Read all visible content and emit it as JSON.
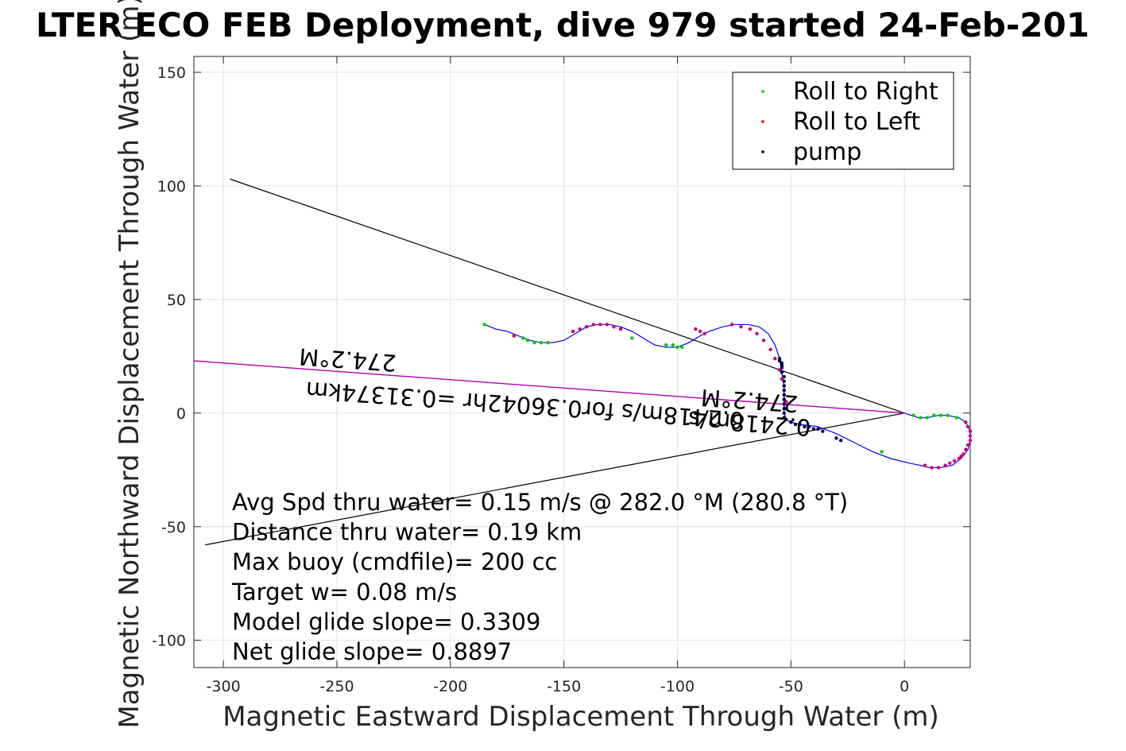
{
  "chart_data": {
    "type": "line",
    "title": "LTER ECO FEB Deployment, dive 979 started 24-Feb-201",
    "xlabel": "Magnetic Eastward Displacement Through Water (m)",
    "ylabel": "Magnetic Northward Displacement Through Water (m)",
    "xlim": [
      -313,
      29
    ],
    "ylim": [
      -112,
      157
    ],
    "grid": true,
    "x_ticks": [
      -300,
      -250,
      -200,
      -150,
      -100,
      -50,
      0
    ],
    "y_ticks": [
      150,
      100,
      50,
      0,
      -50,
      -100
    ],
    "x_tick_labels": [
      "-300",
      "-250",
      "-200",
      "-150",
      "-100",
      "-50",
      "0"
    ],
    "y_tick_labels": [
      "150",
      "100",
      "50",
      "0",
      "-50",
      "-100"
    ],
    "legend": {
      "placement": "top-right",
      "entries": [
        {
          "label": "Roll to Right",
          "color": "#00cc00"
        },
        {
          "label": "Roll to Left",
          "color": "#ff0000"
        },
        {
          "label": "pump",
          "color": "#000000"
        }
      ]
    },
    "colors": {
      "track": "#0000ff",
      "heading_line": "#b000b0",
      "cone_lines": "#000000",
      "roll_left_marker": "#d0006a",
      "pump_marker": "#000050",
      "roll_right_marker": "#00cc00"
    },
    "track": {
      "x": [
        0,
        3,
        6,
        10,
        15,
        19,
        24,
        27,
        29,
        29,
        28,
        25,
        21,
        16,
        11,
        7,
        2,
        -6,
        -14,
        -22,
        -30,
        -38,
        -46,
        -50,
        -52,
        -53,
        -53,
        -53,
        -54,
        -55,
        -57,
        -60,
        -64,
        -69,
        -75,
        -80,
        -86,
        -90,
        -95,
        -100,
        -105,
        -110,
        -115,
        -120,
        -125,
        -130,
        -135,
        -140,
        -145,
        -150,
        -155,
        -160,
        -165,
        -170,
        -175,
        -180,
        -185
      ],
      "y": [
        0,
        -1,
        -2,
        -2,
        -1,
        -1,
        -2,
        -4,
        -8,
        -12,
        -16,
        -20,
        -23,
        -24,
        -24,
        -23,
        -22,
        -20,
        -17,
        -13,
        -9,
        -6,
        -5,
        -4,
        -3,
        0,
        5,
        12,
        18,
        24,
        30,
        35,
        38,
        39,
        39,
        38,
        36,
        34,
        31,
        29,
        29,
        30,
        33,
        36,
        38,
        39,
        39,
        38,
        35,
        32,
        31,
        31,
        32,
        34,
        36,
        37,
        39
      ]
    },
    "roll_right_markers": {
      "x": [
        4,
        7,
        10,
        13,
        16,
        19,
        23,
        12,
        -10,
        -100,
        -98,
        -102,
        -105,
        -160,
        -163,
        -157,
        -166,
        -168,
        -120,
        -185
      ],
      "y": [
        -1,
        -2,
        -2,
        -1,
        -1,
        -1,
        -2,
        -24,
        -17,
        29,
        29,
        30,
        30,
        31,
        31,
        31,
        32,
        33,
        33,
        39
      ]
    },
    "roll_left_markers": {
      "x": [
        27,
        28,
        29,
        29,
        29,
        28,
        27,
        26,
        25,
        24,
        22,
        20,
        18,
        15,
        12,
        9,
        -52,
        -52,
        -53,
        -53,
        -54,
        -55,
        -57,
        -59,
        -62,
        -65,
        -68,
        -72,
        -76,
        -88,
        -90,
        -92,
        -125,
        -128,
        -131,
        -134,
        -137,
        -140,
        -143,
        -146,
        -172
      ],
      "y": [
        -4,
        -6,
        -8,
        -10,
        -12,
        -14,
        -16,
        -18,
        -19,
        -20,
        -21,
        -22,
        -23,
        -24,
        -24,
        -23,
        2,
        5,
        8,
        12,
        15,
        19,
        24,
        28,
        32,
        35,
        37,
        38,
        39,
        35,
        36,
        37,
        37,
        38,
        39,
        39,
        39,
        38,
        37,
        36,
        34
      ]
    },
    "pump_markers": {
      "x": [
        -53,
        -53,
        -53,
        -53,
        -53,
        -53,
        -53,
        -53,
        -53,
        -53,
        -54,
        -54,
        -54,
        -54,
        -55,
        -55,
        -50,
        -48,
        -46,
        -44,
        -42,
        -40,
        -38,
        -36,
        -30,
        -28
      ],
      "y": [
        -2,
        0,
        2,
        4,
        6,
        8,
        10,
        12,
        14,
        16,
        18,
        20,
        21,
        22,
        23,
        24,
        -4,
        -5,
        -5,
        -6,
        -6,
        -7,
        -7,
        -8,
        -11,
        -12
      ]
    },
    "heading_line": {
      "x": [
        0,
        -313
      ],
      "y": [
        0,
        23
      ]
    },
    "cone_upper": {
      "x": [
        0,
        -297
      ],
      "y": [
        0,
        103
      ]
    },
    "cone_lower": {
      "x": [
        0,
        -308
      ],
      "y": [
        0,
        -58
      ]
    },
    "annotations": [
      {
        "text": "274.2°M",
        "x": -245,
        "y": 27,
        "rotate": 184
      },
      {
        "text": "0.2418m/s for0.36042hr =0.31374km",
        "x": -167,
        "y": 7,
        "rotate": 184
      },
      {
        "text": "274.2°M",
        "x": -68,
        "y": 9,
        "rotate": 184
      },
      {
        "text": "0.2418m/s",
        "x": -68,
        "y": -1,
        "rotate": 184
      }
    ],
    "stats": [
      "Avg Spd thru water=  0.15 m/s @ 282.0 °M (280.8 °T)",
      "Distance thru water=  0.19 km",
      "Max buoy (cmdfile)= 200 cc",
      "Target w= 0.08 m/s",
      "Model glide slope= 0.3309",
      "Net glide slope= 0.8897"
    ]
  }
}
